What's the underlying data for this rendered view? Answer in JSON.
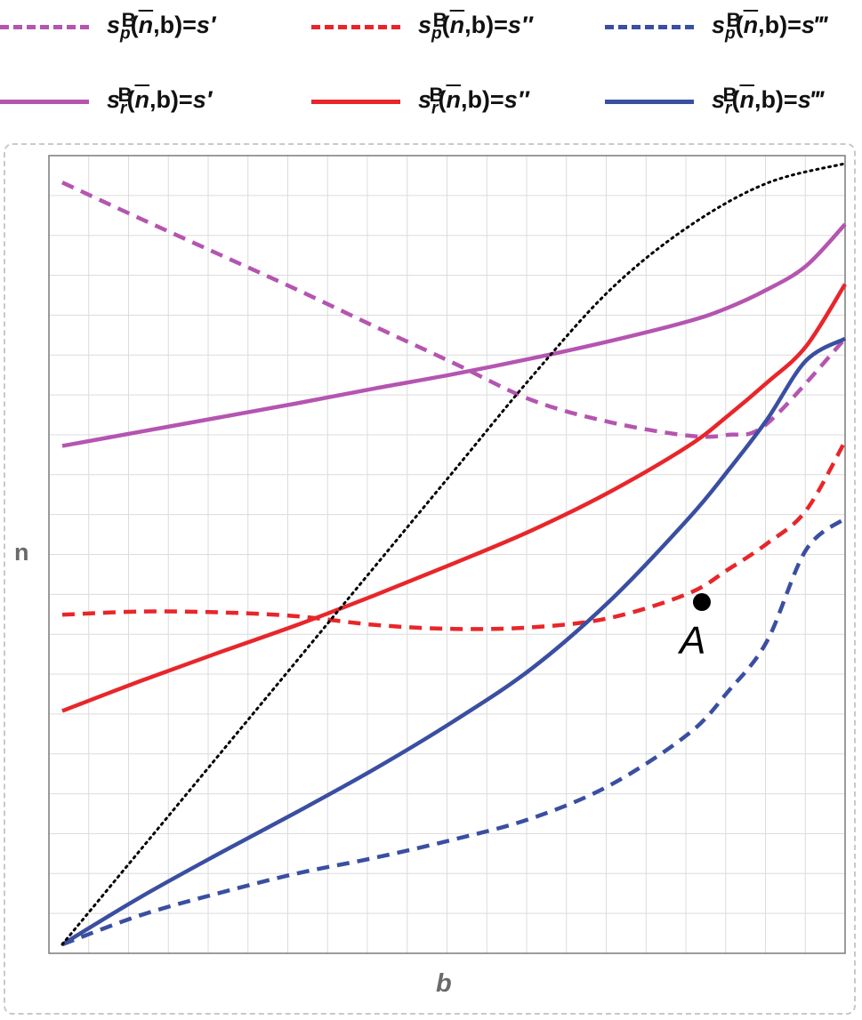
{
  "legend": [
    {
      "sym": "s",
      "sub": "p",
      "sup": "B",
      "arg": "n",
      "rest": ",b)=",
      "rhs": "s′",
      "color": "#b455b0",
      "style": "dashed"
    },
    {
      "sym": "s",
      "sub": "p",
      "sup": "B",
      "arg": "n",
      "rest": ",b)=",
      "rhs": "s″",
      "color": "#e8262a",
      "style": "dashed"
    },
    {
      "sym": "s",
      "sub": "p",
      "sup": "B",
      "arg": "n",
      "rest": ",b)=",
      "rhs": "s‴",
      "color": "#3a4fa1",
      "style": "dashed"
    },
    {
      "sym": "s",
      "sub": "r",
      "sup": "B",
      "arg": "n",
      "rest": ",b)=",
      "rhs": "s′",
      "color": "#b455b0",
      "style": "solid"
    },
    {
      "sym": "s",
      "sub": "r",
      "sup": "B",
      "arg": "n",
      "rest": ",b)=",
      "rhs": "s″",
      "color": "#e8262a",
      "style": "solid"
    },
    {
      "sym": "s",
      "sub": "r",
      "sup": "B",
      "arg": "n",
      "rest": ",b)=",
      "rhs": "s‴",
      "color": "#3a4fa1",
      "style": "solid"
    }
  ],
  "chart_data": {
    "type": "line",
    "xlabel": "b",
    "ylabel": "n",
    "xlim": [
      0,
      1
    ],
    "ylim": [
      0,
      1
    ],
    "grid": true,
    "legend_position": "top",
    "series": [
      {
        "name": "s_p^B(n̄,b)=s′",
        "color": "#b455b0",
        "style": "dashed",
        "x": [
          0,
          0.1,
          0.2,
          0.3,
          0.4,
          0.5,
          0.6,
          0.7,
          0.8,
          0.85,
          0.9,
          1.0
        ],
        "y": [
          0.966,
          0.92,
          0.875,
          0.83,
          0.783,
          0.737,
          0.69,
          0.662,
          0.645,
          0.646,
          0.66,
          0.768
        ]
      },
      {
        "name": "s_p^B(n̄,b)=s″",
        "color": "#e8262a",
        "style": "dashed",
        "x": [
          0,
          0.1,
          0.2,
          0.3,
          0.4,
          0.5,
          0.6,
          0.7,
          0.8,
          0.85,
          0.9,
          0.95,
          1.0
        ],
        "y": [
          0.418,
          0.422,
          0.421,
          0.416,
          0.405,
          0.4,
          0.402,
          0.414,
          0.445,
          0.475,
          0.508,
          0.55,
          0.638
        ]
      },
      {
        "name": "s_p^B(n̄,b)=s‴",
        "color": "#3a4fa1",
        "style": "dashed",
        "x": [
          0,
          0.1,
          0.2,
          0.3,
          0.4,
          0.5,
          0.6,
          0.7,
          0.8,
          0.85,
          0.9,
          0.95,
          1.0
        ],
        "y": [
          0,
          0.037,
          0.065,
          0.09,
          0.11,
          0.133,
          0.16,
          0.202,
          0.267,
          0.32,
          0.384,
          0.5,
          0.54
        ]
      },
      {
        "name": "s_r^B(n̄,b)=s′",
        "color": "#b455b0",
        "style": "solid",
        "x": [
          0,
          0.1,
          0.2,
          0.3,
          0.4,
          0.5,
          0.6,
          0.7,
          0.8,
          0.85,
          0.9,
          0.95,
          1.0
        ],
        "y": [
          0.632,
          0.65,
          0.668,
          0.686,
          0.705,
          0.723,
          0.743,
          0.765,
          0.79,
          0.807,
          0.83,
          0.86,
          0.913
        ]
      },
      {
        "name": "s_r^B(n̄,b)=s″",
        "color": "#e8262a",
        "style": "solid",
        "x": [
          0,
          0.1,
          0.2,
          0.3,
          0.4,
          0.5,
          0.6,
          0.7,
          0.8,
          0.85,
          0.9,
          0.95,
          1.0
        ],
        "y": [
          0.296,
          0.334,
          0.37,
          0.405,
          0.443,
          0.483,
          0.525,
          0.574,
          0.632,
          0.67,
          0.712,
          0.758,
          0.837
        ]
      },
      {
        "name": "s_r^B(n̄,b)=s‴",
        "color": "#3a4fa1",
        "style": "solid",
        "x": [
          0,
          0.1,
          0.2,
          0.3,
          0.4,
          0.5,
          0.6,
          0.7,
          0.8,
          0.85,
          0.9,
          0.95,
          1.0
        ],
        "y": [
          0,
          0.06,
          0.115,
          0.168,
          0.223,
          0.283,
          0.35,
          0.436,
          0.54,
          0.6,
          0.665,
          0.74,
          0.768
        ]
      },
      {
        "name": "",
        "color": "#000000",
        "style": "dotted",
        "x": [
          0,
          0.1,
          0.2,
          0.3,
          0.4,
          0.5,
          0.6,
          0.7,
          0.8,
          0.9,
          1.0
        ],
        "y": [
          0,
          0.12,
          0.24,
          0.36,
          0.48,
          0.6,
          0.72,
          0.83,
          0.91,
          0.965,
          0.99
        ]
      }
    ],
    "points": [
      {
        "label": "A",
        "x": 0.817,
        "y": 0.434
      }
    ]
  }
}
